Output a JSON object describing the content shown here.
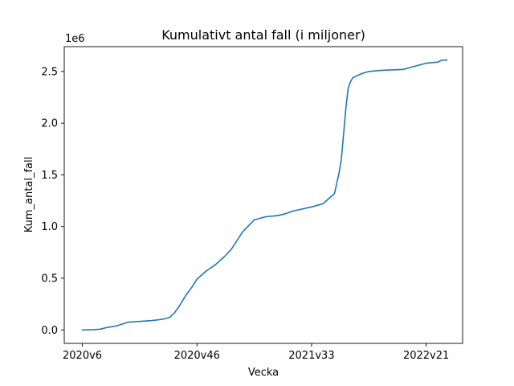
{
  "chart_data": {
    "type": "line",
    "title": "Kumulativt antal fall (i miljoner)",
    "xlabel": "Vecka",
    "ylabel": "Kum_antal_fall",
    "y_offset_label": "1e6",
    "x_tick_labels": [
      "2020v6",
      "2020v46",
      "2021v33",
      "2022v21"
    ],
    "y_tick_labels": [
      "0.0",
      "0.5",
      "1.0",
      "1.5",
      "2.0",
      "2.5"
    ],
    "y_ticks": [
      0,
      0.5,
      1.0,
      1.5,
      2.0,
      2.5
    ],
    "ylim": [
      -0.13,
      2.74
    ],
    "xlim": [
      -7.9,
      165.9
    ],
    "series_color": "#1f77b4",
    "grid": false,
    "legend": "none",
    "series": [
      {
        "x": [
          0,
          5,
          8,
          10,
          15,
          20,
          22,
          25,
          28,
          30,
          32,
          35,
          38,
          40,
          42,
          45,
          48,
          50,
          52,
          54,
          56,
          58,
          60,
          62,
          65,
          70,
          75,
          80,
          85,
          88,
          90,
          92,
          95,
          100,
          105,
          110,
          112,
          113,
          114,
          115,
          116,
          117,
          118,
          119,
          120,
          122,
          125,
          130,
          140,
          145,
          150,
          155,
          156,
          157,
          159
        ],
        "y": [
          0.0,
          0.003,
          0.008,
          0.02,
          0.04,
          0.075,
          0.078,
          0.082,
          0.087,
          0.09,
          0.095,
          0.103,
          0.12,
          0.16,
          0.22,
          0.33,
          0.42,
          0.49,
          0.53,
          0.57,
          0.6,
          0.63,
          0.67,
          0.71,
          0.78,
          0.95,
          1.065,
          1.095,
          1.105,
          1.12,
          1.135,
          1.15,
          1.165,
          1.19,
          1.22,
          1.32,
          1.52,
          1.65,
          1.9,
          2.15,
          2.34,
          2.4,
          2.44,
          2.45,
          2.46,
          2.48,
          2.5,
          2.51,
          2.52,
          2.55,
          2.58,
          2.59,
          2.6,
          2.61,
          2.61
        ]
      }
    ]
  }
}
